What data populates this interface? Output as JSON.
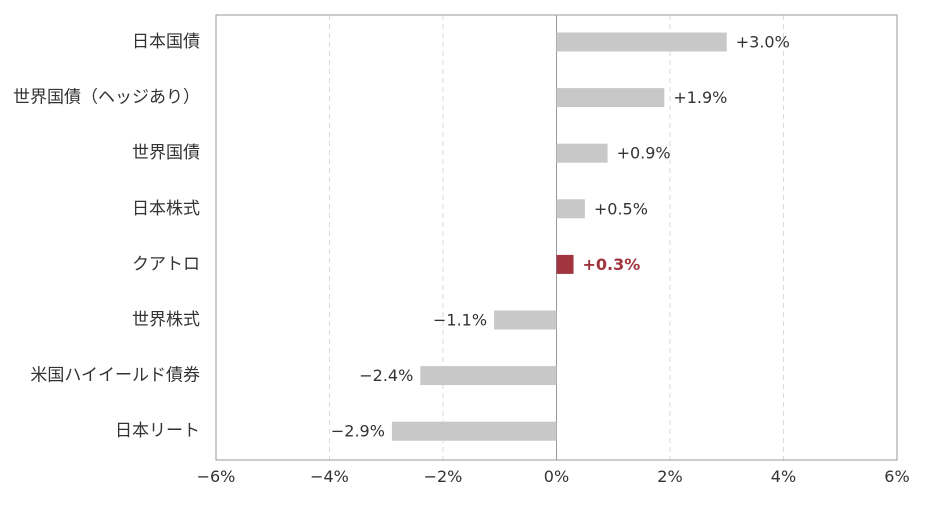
{
  "chart_data": {
    "type": "bar",
    "orientation": "horizontal",
    "categories": [
      "日本国債",
      "世界国債（ヘッジあり）",
      "世界国債",
      "日本株式",
      "クアトロ",
      "世界株式",
      "米国ハイイールド債券",
      "日本リート"
    ],
    "values": [
      3.0,
      1.9,
      0.9,
      0.5,
      0.3,
      -1.1,
      -2.4,
      -2.9
    ],
    "value_labels": [
      "+3.0%",
      "+1.9%",
      "+0.9%",
      "+0.5%",
      "+0.3%",
      "−1.1%",
      "−2.4%",
      "−2.9%"
    ],
    "highlight_category": "クアトロ",
    "xlim": [
      -6,
      6
    ],
    "x_ticks": [
      -6,
      -4,
      -2,
      0,
      2,
      4,
      6
    ],
    "x_tick_labels": [
      "−6%",
      "−4%",
      "−2%",
      "0%",
      "2%",
      "4%",
      "6%"
    ],
    "grid": "vertical dashed",
    "colors": {
      "bar": "#c8c8c8",
      "highlight": "#a0353f",
      "text": "#333333",
      "highlight_text": "#a0353f",
      "frame": "#999999",
      "grid": "#d9d9d9"
    },
    "title": "",
    "xlabel": "",
    "ylabel": ""
  }
}
